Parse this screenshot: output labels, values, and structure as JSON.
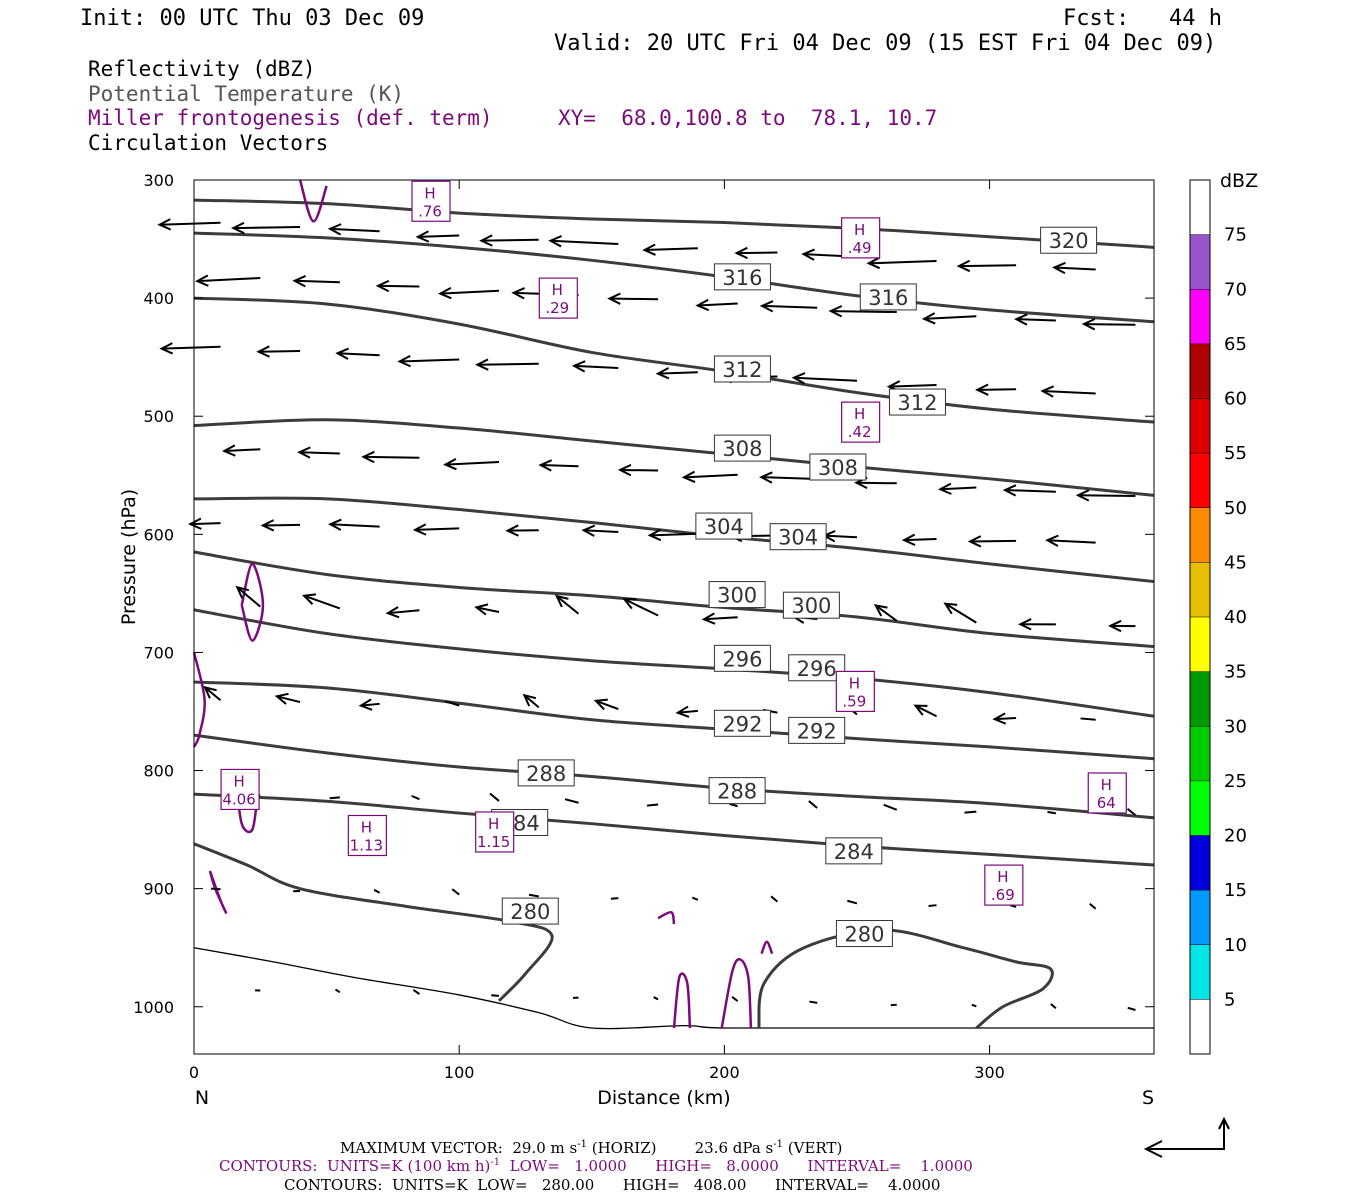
{
  "header": {
    "init": "Init: 00 UTC Thu 03 Dec 09",
    "fcst": "Fcst:   44 h",
    "valid": "Valid: 20 UTC Fri 04 Dec 09 (15 EST Fri 04 Dec 09)"
  },
  "fields": {
    "reflectivity": "Reflectivity (dBZ)",
    "theta": "Potential Temperature (K)",
    "frontogenesis": "Miller frontogenesis (def. term)",
    "xy": "XY=  68.0,100.8 to  78.1, 10.7",
    "vectors": "Circulation Vectors"
  },
  "colors": {
    "theta": "#3c3c3c",
    "frontogenesis": "#7b0a7b",
    "vectors": "#000000"
  },
  "chart_data": {
    "type": "contour-cross-section",
    "xlabel": "Distance (km)",
    "ylabel": "Pressure (hPa)",
    "xlim": [
      0,
      362
    ],
    "ylim": [
      1040,
      300
    ],
    "x_ticks": [
      0,
      100,
      200,
      300
    ],
    "y_ticks": [
      300,
      400,
      500,
      600,
      700,
      800,
      900,
      1000
    ],
    "left_end_label": "N",
    "right_end_label": "S",
    "theta_contours": [
      {
        "level": 320,
        "label": "320",
        "label_at": [
          320,
          351
        ],
        "points": [
          [
            0,
            317
          ],
          [
            50,
            320
          ],
          [
            100,
            328
          ],
          [
            150,
            333
          ],
          [
            200,
            336
          ],
          [
            250,
            341
          ],
          [
            300,
            348
          ],
          [
            362,
            357
          ]
        ]
      },
      {
        "level": 316,
        "label": "316",
        "label_at": [
          197,
          382
        ],
        "label2": "316",
        "label2_at": [
          252,
          399
        ],
        "points": [
          [
            0,
            345
          ],
          [
            50,
            349
          ],
          [
            100,
            357
          ],
          [
            150,
            368
          ],
          [
            200,
            382
          ],
          [
            250,
            398
          ],
          [
            300,
            410
          ],
          [
            362,
            420
          ]
        ]
      },
      {
        "level": 312,
        "label": "312",
        "label_at": [
          197,
          460
        ],
        "label2": "312",
        "label2_at": [
          263,
          488
        ],
        "points": [
          [
            0,
            400
          ],
          [
            50,
            405
          ],
          [
            100,
            422
          ],
          [
            150,
            446
          ],
          [
            200,
            462
          ],
          [
            250,
            480
          ],
          [
            300,
            494
          ],
          [
            362,
            505
          ]
        ]
      },
      {
        "level": 308,
        "label": "308",
        "label_at": [
          197,
          527
        ],
        "label2": "308",
        "label2_at": [
          233,
          543
        ],
        "points": [
          [
            0,
            508
          ],
          [
            50,
            503
          ],
          [
            100,
            510
          ],
          [
            150,
            521
          ],
          [
            200,
            532
          ],
          [
            250,
            543
          ],
          [
            300,
            553
          ],
          [
            362,
            567
          ]
        ]
      },
      {
        "level": 304,
        "label": "304",
        "label_at": [
          190,
          593
        ],
        "label2": "304",
        "label2_at": [
          218,
          602
        ],
        "points": [
          [
            0,
            570
          ],
          [
            50,
            570
          ],
          [
            100,
            579
          ],
          [
            150,
            590
          ],
          [
            200,
            602
          ],
          [
            250,
            612
          ],
          [
            300,
            625
          ],
          [
            362,
            640
          ]
        ]
      },
      {
        "level": 300,
        "label": "300",
        "label_at": [
          195,
          651
        ],
        "label2": "300",
        "label2_at": [
          223,
          660
        ],
        "points": [
          [
            0,
            615
          ],
          [
            50,
            634
          ],
          [
            100,
            645
          ],
          [
            150,
            652
          ],
          [
            200,
            662
          ],
          [
            250,
            670
          ],
          [
            300,
            684
          ],
          [
            362,
            695
          ]
        ]
      },
      {
        "level": 296,
        "label": "296",
        "label_at": [
          197,
          705
        ],
        "label2": "296",
        "label2_at": [
          225,
          713
        ],
        "points": [
          [
            0,
            664
          ],
          [
            50,
            684
          ],
          [
            100,
            697
          ],
          [
            150,
            707
          ],
          [
            200,
            714
          ],
          [
            250,
            722
          ],
          [
            300,
            734
          ],
          [
            362,
            754
          ]
        ]
      },
      {
        "level": 292,
        "label": "292",
        "label_at": [
          197,
          760
        ],
        "label2": "292",
        "label2_at": [
          225,
          766
        ],
        "points": [
          [
            0,
            725
          ],
          [
            50,
            730
          ],
          [
            100,
            743
          ],
          [
            150,
            757
          ],
          [
            200,
            765
          ],
          [
            250,
            773
          ],
          [
            300,
            780
          ],
          [
            362,
            790
          ]
        ]
      },
      {
        "level": 288,
        "label": "288",
        "label_at": [
          123,
          802
        ],
        "label2": "288",
        "label2_at": [
          195,
          817
        ],
        "points": [
          [
            0,
            770
          ],
          [
            50,
            785
          ],
          [
            100,
            797
          ],
          [
            150,
            805
          ],
          [
            200,
            815
          ],
          [
            250,
            822
          ],
          [
            300,
            828
          ],
          [
            362,
            840
          ]
        ]
      },
      {
        "level": 284,
        "label": "284",
        "label_at": [
          113,
          844
        ],
        "label2": "284",
        "label2_at": [
          239,
          868
        ],
        "points": [
          [
            0,
            820
          ],
          [
            50,
            826
          ],
          [
            100,
            836
          ],
          [
            150,
            845
          ],
          [
            200,
            855
          ],
          [
            250,
            864
          ],
          [
            300,
            871
          ],
          [
            362,
            880
          ]
        ]
      },
      {
        "level": 280,
        "label": "280",
        "label_at": [
          117,
          919
        ],
        "label2": "280",
        "label2_at": [
          243,
          938
        ],
        "points": [
          [
            0,
            862
          ],
          [
            20,
            880
          ],
          [
            40,
            900
          ],
          [
            80,
            915
          ],
          [
            120,
            928
          ],
          [
            135,
            940
          ],
          [
            125,
            972
          ],
          [
            115,
            995
          ]
        ]
      },
      {
        "level": 280,
        "label": "",
        "points": [
          [
            213,
            1018
          ],
          [
            215,
            980
          ],
          [
            230,
            950
          ],
          [
            260,
            935
          ],
          [
            290,
            950
          ],
          [
            310,
            962
          ],
          [
            323,
            968
          ],
          [
            320,
            985
          ],
          [
            305,
            1000
          ],
          [
            295,
            1018
          ]
        ]
      }
    ],
    "frontogenesis_maxima": [
      {
        "label": "H",
        "value": ".76",
        "at": [
          89,
          318
        ]
      },
      {
        "label": "H",
        "value": ".29",
        "at": [
          137,
          400
        ]
      },
      {
        "label": "H",
        "value": ".49",
        "at": [
          251,
          349
        ]
      },
      {
        "label": "H",
        "value": ".42",
        "at": [
          251,
          505
        ]
      },
      {
        "label": "H",
        "value": ".59",
        "at": [
          249,
          733
        ]
      },
      {
        "label": "H",
        "value": "4.06",
        "at": [
          17,
          816
        ]
      },
      {
        "label": "H",
        "value": "1.13",
        "at": [
          65,
          855
        ]
      },
      {
        "label": "H",
        "value": "1.15",
        "at": [
          113,
          852
        ]
      },
      {
        "label": "H",
        "value": ".69",
        "at": [
          305,
          897
        ]
      },
      {
        "label": "H",
        "value": "64",
        "at": [
          344,
          819
        ]
      }
    ],
    "reflectivity_colorbar": {
      "unit": "dBZ",
      "levels": [
        "5",
        "10",
        "15",
        "20",
        "25",
        "30",
        "35",
        "40",
        "45",
        "50",
        "55",
        "60",
        "65",
        "70",
        "75"
      ],
      "colors": [
        "#ffffff",
        "#00e5e5",
        "#0099ff",
        "#0000dd",
        "#00ff00",
        "#00cc00",
        "#009900",
        "#ffff00",
        "#e5bf00",
        "#ff8c00",
        "#ff0000",
        "#dd0000",
        "#b00000",
        "#ff00ff",
        "#9955cc",
        "#ffffff"
      ]
    }
  },
  "footer": {
    "max_vector": "MAXIMUM VECTOR:  29.0 m s",
    "max_vector_exp": "-1",
    "max_vector_h": " (HORIZ)",
    "max_vector_v": "23.6 dPa s",
    "max_vector_v_exp": "-1",
    "max_vector_vend": " (VERT)",
    "contours_fg": "CONTOURS:  UNITS=K (100 km h)",
    "contours_fg_exp": "-1",
    "contours_fg_rest": "  LOW=   1.0000      HIGH=   8.0000      INTERVAL=    1.0000",
    "contours_theta": "CONTOURS:  UNITS=K  LOW=   280.00      HIGH=   408.00      INTERVAL=    4.0000"
  }
}
